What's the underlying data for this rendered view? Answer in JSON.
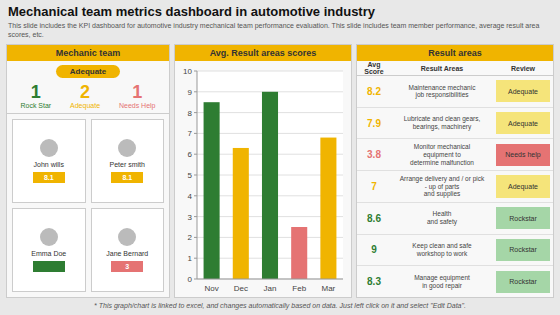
{
  "title": "Mechanical team metrics dashboard in automotive industry",
  "subtitle": "This slide includes the KPI dashboard for automotive industry mechanical team performance evaluation. This slide includes team member performance, average result area scores, etc.",
  "footer": "* This graph/chart is linked to excel, and changes automatically based on data. Just left click on it and select \"Edit Data\".",
  "background_color": "#e8e8e8",
  "header_color": "#f0b400",
  "chart_data": {
    "type": "bar",
    "title": "Avg. Result areas scores",
    "categories": [
      "Nov",
      "Dec",
      "Jan",
      "Feb",
      "Mar"
    ],
    "values": [
      8.5,
      6.3,
      9.0,
      2.5,
      6.8
    ],
    "colors": [
      "#2e7d32",
      "#f0b400",
      "#2e7d32",
      "#e57373",
      "#f0b400"
    ],
    "ylim": [
      0,
      10
    ],
    "yticks": [
      0,
      1,
      2,
      3,
      4,
      5,
      6,
      7,
      8,
      9,
      10
    ],
    "grid": true
  },
  "mechanic_panel": {
    "title": "Mechanic team",
    "badge": "Adequate",
    "stats": [
      {
        "value": 1,
        "label": "Rock Star",
        "color": "#2e7d32"
      },
      {
        "value": 2,
        "label": "Adequate",
        "color": "#f0b400"
      },
      {
        "value": 1,
        "label": "Needs Help",
        "color": "#e57373"
      }
    ],
    "team_members": [
      {
        "name": "John wills",
        "score": 8.1,
        "color": "#f0b400"
      },
      {
        "name": "Peter smith",
        "score": 8.1,
        "color": "#f0b400"
      },
      {
        "name": "Emma Doe",
        "color": "#2e7d32"
      },
      {
        "name": "Jane Bernard",
        "score": 3,
        "color": "#e57373"
      }
    ]
  },
  "result_panel": {
    "title": "Result areas",
    "headers": [
      "Avg Score",
      "Result Areas",
      "Review"
    ],
    "rows": [
      {
        "score": 8.2,
        "score_color": "#f0b400",
        "area": "Maintenance mechanic\njob responsibilities",
        "review": "Adequate",
        "review_color": "#f5e47a"
      },
      {
        "score": 7.9,
        "score_color": "#f0b400",
        "area": "Lubricate and clean gears,\nbearings, machinery",
        "review": "Adequate",
        "review_color": "#f5e47a"
      },
      {
        "score": 3.8,
        "score_color": "#e57373",
        "area": "Monitor mechanical\nequipment to\ndetermine malfunction",
        "review": "Needs help",
        "review_color": "#e57373"
      },
      {
        "score": 7,
        "score_color": "#f0b400",
        "area": "Arrange delivery and / or pick\n- up of parts\nand supplies",
        "review": "Adequate",
        "review_color": "#f5e47a"
      },
      {
        "score": 8.6,
        "score_color": "#2e7d32",
        "area": "Health\nand safety",
        "review": "Rockstar",
        "review_color": "#a5d6a7"
      },
      {
        "score": 9,
        "score_color": "#2e7d32",
        "area": "Keep clean and safe\nworkshop to work",
        "review": "Rockstar",
        "review_color": "#a5d6a7"
      },
      {
        "score": 8.3,
        "score_color": "#2e7d32",
        "area": "Manage equipment\nin good repair",
        "review": "Rockstar",
        "review_color": "#a5d6a7"
      }
    ]
  }
}
